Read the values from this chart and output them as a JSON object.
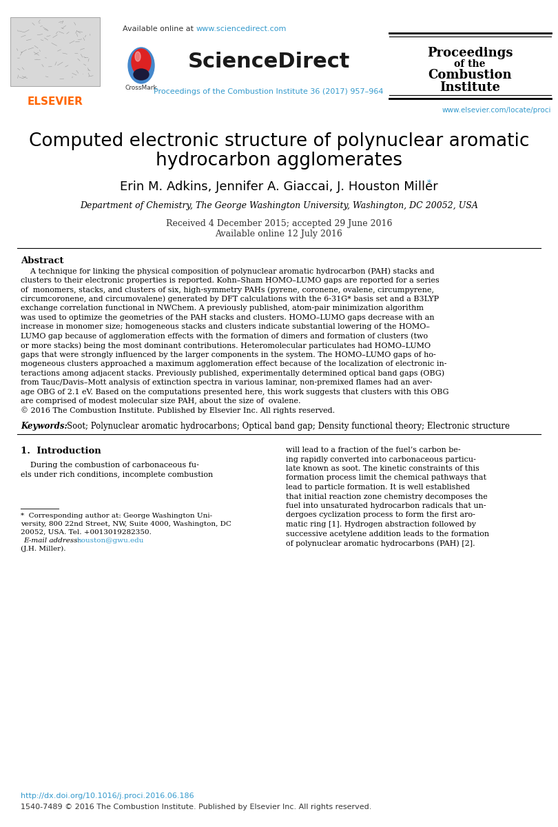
{
  "bg_color": "#ffffff",
  "elsevier_color": "#ff6600",
  "link_color": "#3399cc",
  "title_line1": "Computed electronic structure of polynuclear aromatic",
  "title_line2": "hydrocarbon agglomerates",
  "authors": "Erin M. Adkins, Jennifer A. Giaccai, J. Houston Miller",
  "affiliation": "Department of Chemistry, The George Washington University, Washington, DC 20052, USA",
  "received": "Received 4 December 2015; accepted 29 June 2016",
  "available": "Available online 12 July 2016",
  "abstract_lines": [
    "    A technique for linking the physical composition of polynuclear aromatic hydrocarbon (PAH) stacks and",
    "clusters to their electronic properties is reported. Kohn–Sham HOMO–LUMO gaps are reported for a series",
    "of  monomers, stacks, and clusters of six, high-symmetry PAHs (pyrene, coronene, ovalene, circumpyrene,",
    "circumcoronene, and circumovalene) generated by DFT calculations with the 6-31G* basis set and a B3LYP",
    "exchange correlation functional in NWChem. A previously published, atom-pair minimization algorithm",
    "was used to optimize the geometries of the PAH stacks and clusters. HOMO–LUMO gaps decrease with an",
    "increase in monomer size; homogeneous stacks and clusters indicate substantial lowering of the HOMO–",
    "LUMO gap because of agglomeration effects with the formation of dimers and formation of clusters (two",
    "or more stacks) being the most dominant contributions. Heteromolecular particulates had HOMO–LUMO",
    "gaps that were strongly influenced by the larger components in the system. The HOMO–LUMO gaps of ho-",
    "mogeneous clusters approached a maximum agglomeration effect because of the localization of electronic in-",
    "teractions among adjacent stacks. Previously published, experimentally determined optical band gaps (OBG)",
    "from Tauc/Davis–Mott analysis of extinction spectra in various laminar, non-premixed flames had an aver-",
    "age OBG of 2.1 eV. Based on the computations presented here, this work suggests that clusters with this OBG",
    "are comprised of modest molecular size PAH, about the size of  ovalene.",
    "© 2016 The Combustion Institute. Published by Elsevier Inc. All rights reserved."
  ],
  "keywords_text": "Soot; Polynuclear aromatic hydrocarbons; Optical band gap; Density functional theory; Electronic structure",
  "intro_col1_lines": [
    "    During the combustion of carbonaceous fu-",
    "els under rich conditions, incomplete combustion"
  ],
  "intro_col2_lines": [
    "will lead to a fraction of the fuel’s carbon be-",
    "ing rapidly converted into carbonaceous particu-",
    "late known as soot. The kinetic constraints of this",
    "formation process limit the chemical pathways that",
    "lead to particle formation. It is well established",
    "that initial reaction zone chemistry decomposes the",
    "fuel into unsaturated hydrocarbon radicals that un-",
    "dergoes cyclization process to form the first aro-",
    "matic ring [1]. Hydrogen abstraction followed by",
    "successive acetylene addition leads to the formation",
    "of polynuclear aromatic hydrocarbons (PAH) [2]."
  ],
  "footnote_lines": [
    "*  Corresponding author at: George Washington Uni-",
    "versity, 800 22nd Street, NW, Suite 4000, Washington, DC",
    "20052, USA. Tel. +0013019282350."
  ],
  "footnote_email": "houston@gwu.edu",
  "footnote_suffix": "(J.H. Miller).",
  "doi_text": "http://dx.doi.org/10.1016/j.proci.2016.06.186",
  "issn_text": "1540-7489 © 2016 The Combustion Institute. Published by Elsevier Inc. All rights reserved.",
  "journal_ref": "Proceedings of the Combustion Institute 36 (2017) 957–964",
  "elsevier_url": "www.elsevier.com/locate/proci",
  "proceedings_lines": [
    "Proceedings",
    "of the",
    "Combustion",
    "Institute"
  ]
}
